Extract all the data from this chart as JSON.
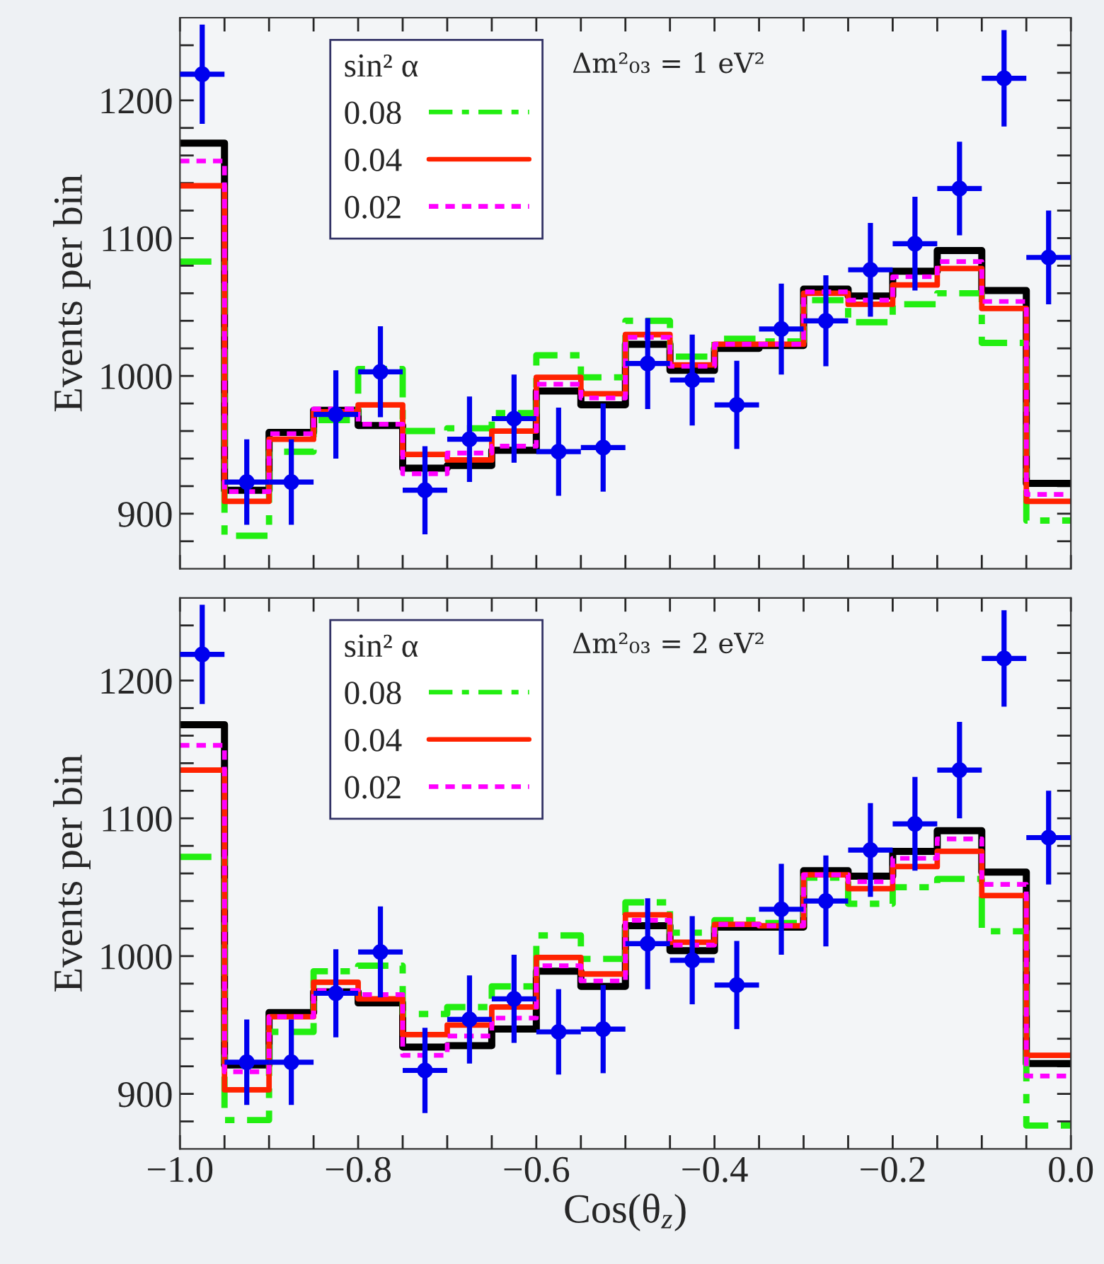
{
  "chart_data": [
    {
      "type": "step",
      "ylabel": "Events per bin",
      "legend": "top left",
      "legend_title": "sin² α",
      "annotations": [
        "Δm²₀₃ = 1 eV²"
      ],
      "tick_labels": "y",
      "x": [
        -1.0,
        -0.95,
        -0.9,
        -0.85,
        -0.8,
        -0.75,
        -0.7,
        -0.65,
        -0.6,
        -0.55,
        -0.5,
        -0.45,
        -0.4,
        -0.35,
        -0.3,
        -0.25,
        -0.2,
        -0.15,
        -0.1,
        -0.05
      ],
      "xlim": [
        -1.0,
        0.0
      ],
      "ylim": [
        860,
        1260
      ],
      "xticks": [
        {
          "value": -1.0,
          "label": null
        },
        {
          "value": -0.95,
          "label": null
        },
        {
          "value": -0.9,
          "label": null
        },
        {
          "value": -0.85,
          "label": null
        },
        {
          "value": -0.8,
          "label": null
        },
        {
          "value": -0.75,
          "label": null
        },
        {
          "value": -0.7,
          "label": null
        },
        {
          "value": -0.65,
          "label": null
        },
        {
          "value": -0.6,
          "label": null
        },
        {
          "value": -0.55,
          "label": null
        },
        {
          "value": -0.5,
          "label": null
        },
        {
          "value": -0.45,
          "label": null
        },
        {
          "value": -0.4,
          "label": null
        },
        {
          "value": -0.35,
          "label": null
        },
        {
          "value": -0.3,
          "label": null
        },
        {
          "value": -0.25,
          "label": null
        },
        {
          "value": -0.2,
          "label": null
        },
        {
          "value": -0.15,
          "label": null
        },
        {
          "value": -0.1,
          "label": null
        },
        {
          "value": -0.05,
          "label": null
        },
        {
          "value": 0.0,
          "label": null
        }
      ],
      "yticks": [
        {
          "value": 880,
          "label": null
        },
        900,
        {
          "value": 920,
          "label": null
        },
        {
          "value": 940,
          "label": null
        },
        {
          "value": 960,
          "label": null
        },
        {
          "value": 980,
          "label": null
        },
        1000,
        {
          "value": 1020,
          "label": null
        },
        {
          "value": 1040,
          "label": null
        },
        {
          "value": 1060,
          "label": null
        },
        {
          "value": 1080,
          "label": null
        },
        1100,
        {
          "value": 1120,
          "label": null
        },
        {
          "value": 1140,
          "label": null
        },
        {
          "value": 1160,
          "label": null
        },
        {
          "value": 1180,
          "label": null
        },
        1200,
        {
          "value": 1220,
          "label": null
        },
        {
          "value": 1240,
          "label": null
        }
      ],
      "series": [
        {
          "type": "step",
          "color": "#000000",
          "line_style": "solid",
          "values": [
            1169,
            917,
            959,
            975,
            964,
            933,
            935,
            946,
            989,
            979,
            1023,
            1004,
            1020,
            1022,
            1063,
            1058,
            1076,
            1091,
            1062,
            922
          ]
        },
        {
          "type": "step",
          "name": "0.08",
          "color": "#22ee11",
          "line_style": "dashed",
          "values": [
            1083,
            884,
            945,
            968,
            1005,
            960,
            962,
            973,
            1015,
            999,
            1040,
            1014,
            1027,
            1025,
            1055,
            1039,
            1052,
            1060,
            1024,
            895
          ]
        },
        {
          "type": "step",
          "name": "0.04",
          "color": "#ff2200",
          "line_style": "solid",
          "values": [
            1138,
            909,
            954,
            974,
            979,
            943,
            939,
            960,
            999,
            987,
            1030,
            1008,
            1023,
            1023,
            1060,
            1052,
            1066,
            1078,
            1049,
            909
          ]
        },
        {
          "type": "step",
          "name": "0.02",
          "color": "#ff00ff",
          "line_style": "dotted",
          "values": [
            1156,
            916,
            958,
            976,
            965,
            929,
            944,
            949,
            994,
            984,
            1028,
            1007,
            1023,
            1023,
            1061,
            1055,
            1072,
            1083,
            1054,
            914
          ]
        },
        {
          "type": "scatter",
          "color": "#0000ee",
          "marker": "circle",
          "x": [
            -0.975,
            -0.925,
            -0.875,
            -0.825,
            -0.775,
            -0.725,
            -0.675,
            -0.625,
            -0.575,
            -0.525,
            -0.475,
            -0.425,
            -0.375,
            -0.325,
            -0.275,
            -0.225,
            -0.175,
            -0.125,
            -0.075,
            -0.025
          ],
          "values": [
            1219,
            923,
            923,
            972,
            1003,
            917,
            954,
            969,
            945,
            948,
            1009,
            997,
            979,
            1034,
            1040,
            1077,
            1096,
            1136,
            1216,
            1086
          ],
          "errors": [
            36,
            31,
            31,
            32,
            33,
            32,
            31,
            32,
            32,
            32,
            33,
            33,
            32,
            33,
            33,
            34,
            34,
            34,
            35,
            34
          ],
          "xerrors": [
            0.025,
            0.025,
            0.025,
            0.025,
            0.025,
            0.025,
            0.025,
            0.025,
            0.025,
            0.025,
            0.025,
            0.025,
            0.025,
            0.025,
            0.025,
            0.025,
            0.025,
            0.025,
            0.025,
            0.025
          ]
        }
      ]
    },
    {
      "type": "step",
      "ylabel": "Events per bin",
      "xlabel": "Cos(θ$_{z}$)",
      "legend": "top left",
      "legend_title": "sin² α",
      "annotations": [
        "Δm²₀₃ = 2 eV²"
      ],
      "x": [
        -1.0,
        -0.95,
        -0.9,
        -0.85,
        -0.8,
        -0.75,
        -0.7,
        -0.65,
        -0.6,
        -0.55,
        -0.5,
        -0.45,
        -0.4,
        -0.35,
        -0.3,
        -0.25,
        -0.2,
        -0.15,
        -0.1,
        -0.05
      ],
      "xlim": [
        -1.0,
        0.0
      ],
      "ylim": [
        860,
        1260
      ],
      "xticks": [
        {
          "value": -1.0,
          "label": "−1.0"
        },
        {
          "value": -0.95,
          "label": null
        },
        {
          "value": -0.9,
          "label": null
        },
        {
          "value": -0.85,
          "label": null
        },
        {
          "value": -0.8,
          "label": "−0.8"
        },
        {
          "value": -0.75,
          "label": null
        },
        {
          "value": -0.7,
          "label": null
        },
        {
          "value": -0.65,
          "label": null
        },
        {
          "value": -0.6,
          "label": "−0.6"
        },
        {
          "value": -0.55,
          "label": null
        },
        {
          "value": -0.5,
          "label": null
        },
        {
          "value": -0.45,
          "label": null
        },
        {
          "value": -0.4,
          "label": "−0.4"
        },
        {
          "value": -0.35,
          "label": null
        },
        {
          "value": -0.3,
          "label": null
        },
        {
          "value": -0.25,
          "label": null
        },
        {
          "value": -0.2,
          "label": "−0.2"
        },
        {
          "value": -0.15,
          "label": null
        },
        {
          "value": -0.1,
          "label": null
        },
        {
          "value": -0.05,
          "label": null
        },
        {
          "value": 0.0,
          "label": "0.0"
        }
      ],
      "yticks": [
        {
          "value": 880,
          "label": null
        },
        900,
        {
          "value": 920,
          "label": null
        },
        {
          "value": 940,
          "label": null
        },
        {
          "value": 960,
          "label": null
        },
        {
          "value": 980,
          "label": null
        },
        1000,
        {
          "value": 1020,
          "label": null
        },
        {
          "value": 1040,
          "label": null
        },
        {
          "value": 1060,
          "label": null
        },
        {
          "value": 1080,
          "label": null
        },
        1100,
        {
          "value": 1120,
          "label": null
        },
        {
          "value": 1140,
          "label": null
        },
        {
          "value": 1160,
          "label": null
        },
        {
          "value": 1180,
          "label": null
        },
        1200,
        {
          "value": 1220,
          "label": null
        },
        {
          "value": 1240,
          "label": null
        }
      ],
      "series": [
        {
          "type": "step",
          "color": "#000000",
          "line_style": "solid",
          "values": [
            1168,
            921,
            959,
            974,
            966,
            934,
            935,
            947,
            989,
            978,
            1022,
            1004,
            1021,
            1021,
            1062,
            1058,
            1076,
            1091,
            1061,
            922
          ]
        },
        {
          "type": "step",
          "name": "0.08",
          "color": "#22ee11",
          "line_style": "dashed",
          "values": [
            1072,
            881,
            945,
            989,
            993,
            958,
            963,
            978,
            1015,
            998,
            1039,
            1017,
            1026,
            1024,
            1057,
            1038,
            1050,
            1056,
            1018,
            877
          ]
        },
        {
          "type": "step",
          "name": "0.04",
          "color": "#ff2200",
          "line_style": "solid",
          "values": [
            1135,
            903,
            956,
            981,
            969,
            943,
            950,
            963,
            999,
            987,
            1030,
            1010,
            1023,
            1022,
            1059,
            1049,
            1065,
            1076,
            1044,
            928
          ]
        },
        {
          "type": "step",
          "name": "0.02",
          "color": "#ff00ff",
          "line_style": "dotted",
          "values": [
            1153,
            916,
            956,
            975,
            972,
            928,
            942,
            955,
            993,
            982,
            1026,
            1008,
            1023,
            1022,
            1059,
            1054,
            1071,
            1085,
            1052,
            913
          ]
        },
        {
          "type": "scatter",
          "color": "#0000ee",
          "marker": "circle",
          "x": [
            -0.975,
            -0.925,
            -0.875,
            -0.825,
            -0.775,
            -0.725,
            -0.675,
            -0.625,
            -0.575,
            -0.525,
            -0.475,
            -0.425,
            -0.375,
            -0.325,
            -0.275,
            -0.225,
            -0.175,
            -0.125,
            -0.075,
            -0.025
          ],
          "values": [
            1219,
            923,
            923,
            973,
            1003,
            917,
            954,
            969,
            945,
            947,
            1009,
            997,
            979,
            1034,
            1040,
            1077,
            1096,
            1135,
            1216,
            1086
          ],
          "errors": [
            36,
            31,
            31,
            32,
            33,
            31,
            32,
            32,
            31,
            32,
            33,
            32,
            32,
            33,
            33,
            34,
            34,
            35,
            35,
            34
          ],
          "xerrors": [
            0.025,
            0.025,
            0.025,
            0.025,
            0.025,
            0.025,
            0.025,
            0.025,
            0.025,
            0.025,
            0.025,
            0.025,
            0.025,
            0.025,
            0.025,
            0.025,
            0.025,
            0.025,
            0.025,
            0.025
          ]
        }
      ]
    }
  ]
}
